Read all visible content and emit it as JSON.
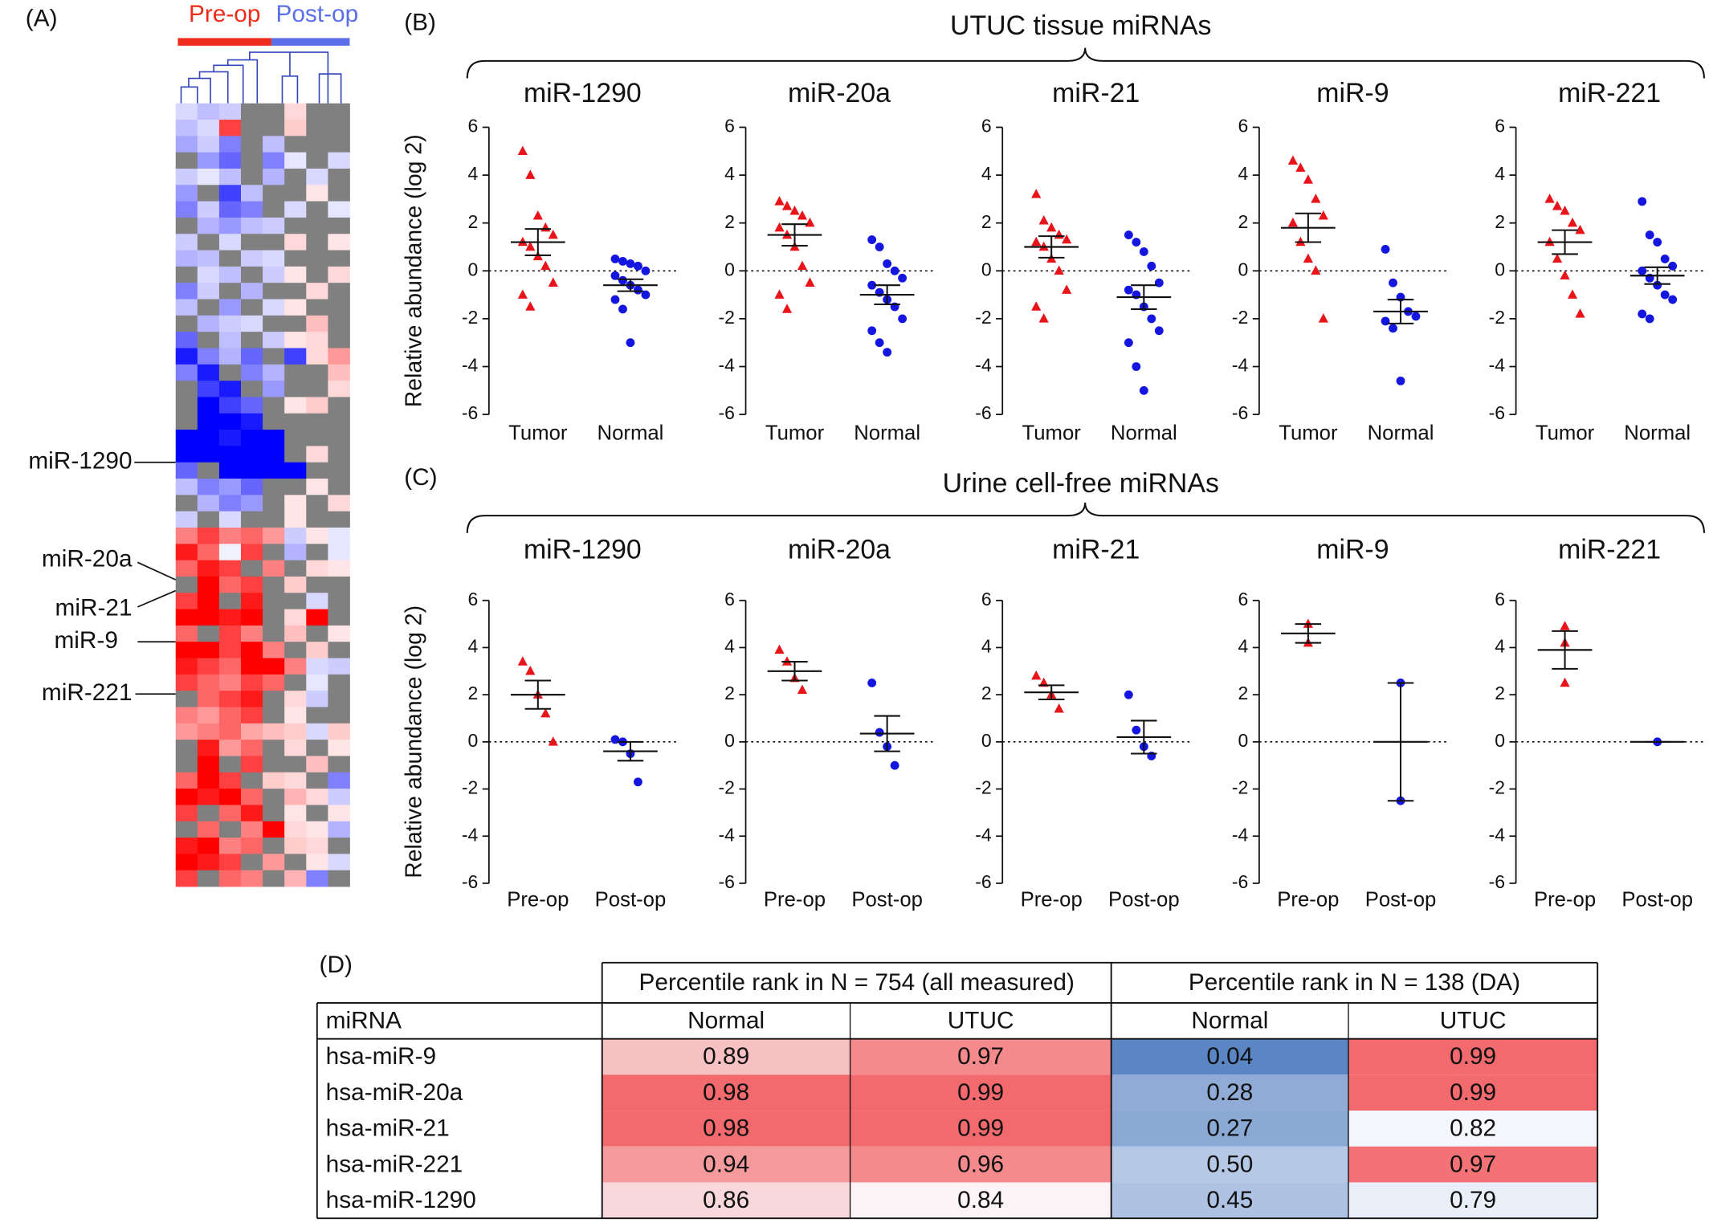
{
  "heatmap": {
    "label": "(A)",
    "groups": [
      {
        "name": "Pre-op",
        "color": "#ee2c1c"
      },
      {
        "name": "Post-op",
        "color": "#5a6fe8"
      }
    ],
    "row_labels": [
      "miR-1290",
      "miR-20a",
      "miR-21",
      "miR-9",
      "miR-221"
    ],
    "vlim": [
      -2,
      2
    ],
    "colors": {
      "low": "#0000ff",
      "mid": "#ffffff",
      "high": "#ff0000",
      "missing": "#808080"
    },
    "values": [
      [
        -0.3,
        -0.5,
        -0.4,
        null,
        null,
        0.3,
        null,
        null
      ],
      [
        -0.5,
        -0.3,
        1.5,
        null,
        null,
        0.4,
        null,
        null
      ],
      [
        -0.7,
        -0.4,
        -1,
        null,
        -0.5,
        null,
        null,
        null
      ],
      [
        null,
        -0.8,
        -1.2,
        null,
        -1,
        -0.2,
        null,
        -0.3
      ],
      [
        -0.4,
        -0.2,
        -0.5,
        null,
        -0.6,
        null,
        -0.3,
        null
      ],
      [
        -0.8,
        null,
        -1.5,
        -0.5,
        null,
        null,
        0.2,
        null
      ],
      [
        -1,
        -0.4,
        -1.2,
        -1,
        null,
        -0.3,
        null,
        -0.2
      ],
      [
        null,
        -0.6,
        -0.8,
        -0.5,
        -0.4,
        null,
        null,
        null
      ],
      [
        -0.4,
        null,
        -0.3,
        null,
        null,
        0.3,
        null,
        0.2
      ],
      [
        -0.6,
        -0.5,
        null,
        -0.4,
        -0.3,
        null,
        null,
        null
      ],
      [
        null,
        -0.3,
        -0.5,
        null,
        -0.4,
        0.2,
        null,
        0.3
      ],
      [
        -1,
        -0.4,
        null,
        -0.6,
        null,
        null,
        0.3,
        null
      ],
      [
        -0.5,
        null,
        -0.8,
        null,
        -0.3,
        0.2,
        null,
        null
      ],
      [
        null,
        -0.6,
        -0.4,
        -0.3,
        null,
        null,
        0.5,
        null
      ],
      [
        -1.2,
        null,
        -0.5,
        null,
        -0.4,
        0.2,
        0.3,
        null
      ],
      [
        -1.8,
        -1,
        -0.6,
        -1.2,
        null,
        -1.5,
        0.3,
        0.8
      ],
      [
        -1,
        -1.8,
        null,
        -1,
        -0.6,
        null,
        null,
        0.5
      ],
      [
        null,
        -1.5,
        -1.8,
        null,
        -0.8,
        null,
        null,
        0.3
      ],
      [
        null,
        -2,
        -1.5,
        -1.2,
        null,
        0.2,
        0.4,
        null
      ],
      [
        null,
        -2,
        -2,
        -1.8,
        null,
        null,
        null,
        null
      ],
      [
        -2,
        -2,
        -1.8,
        -2,
        -2,
        null,
        null,
        null
      ],
      [
        -2,
        -2,
        -2,
        -2,
        -2,
        null,
        0.3,
        null
      ],
      [
        -1.2,
        null,
        -2,
        -2,
        -2,
        -2,
        null,
        null
      ],
      [
        -0.5,
        -1,
        -0.8,
        -1.2,
        null,
        null,
        0.2,
        null
      ],
      [
        null,
        -0.6,
        -1,
        -0.8,
        null,
        0.2,
        null,
        0.3
      ],
      [
        -0.4,
        null,
        -0.3,
        null,
        null,
        0.2,
        null,
        null
      ],
      [
        1,
        1.5,
        1,
        1.2,
        0.8,
        -0.4,
        0.2,
        -0.2
      ],
      [
        1.8,
        1.2,
        -0.1,
        1.5,
        null,
        -0.6,
        null,
        -0.2
      ],
      [
        1.2,
        1.8,
        1.5,
        null,
        1,
        null,
        0.3,
        0.2
      ],
      [
        null,
        2,
        1.2,
        1.5,
        null,
        0.4,
        null,
        null
      ],
      [
        1.5,
        2,
        null,
        1.8,
        null,
        null,
        -0.3,
        null
      ],
      [
        2,
        2,
        1.8,
        2,
        null,
        0.3,
        2,
        null
      ],
      [
        1.2,
        null,
        1.5,
        1,
        null,
        0.5,
        null,
        0.2
      ],
      [
        2,
        2,
        1.5,
        2,
        1,
        null,
        0.4,
        null
      ],
      [
        1.8,
        1.5,
        1.2,
        2,
        2,
        1,
        -0.3,
        -0.4
      ],
      [
        1.5,
        1.2,
        1,
        1.5,
        1.2,
        null,
        -0.2,
        null
      ],
      [
        null,
        1.2,
        1.5,
        1.8,
        null,
        0.3,
        -0.4,
        null
      ],
      [
        1,
        0.8,
        1.2,
        1.5,
        null,
        0.2,
        null,
        null
      ],
      [
        0.8,
        1,
        1.2,
        0.7,
        0.5,
        0.4,
        -0.3,
        0.4
      ],
      [
        null,
        1.8,
        0.8,
        1.2,
        null,
        0.3,
        null,
        0.2
      ],
      [
        null,
        2,
        null,
        1.5,
        null,
        null,
        0.5,
        null
      ],
      [
        1.2,
        2,
        1.5,
        null,
        0.4,
        0.3,
        null,
        -1
      ],
      [
        2,
        1.8,
        2,
        1.2,
        null,
        0.6,
        0.3,
        -0.4
      ],
      [
        1.5,
        null,
        1.2,
        1.8,
        null,
        0.2,
        null,
        0.2
      ],
      [
        null,
        1.2,
        null,
        1,
        2,
        0.3,
        0.2,
        -0.6
      ],
      [
        1.8,
        2,
        1,
        1.2,
        null,
        0.4,
        0.3,
        null
      ],
      [
        2,
        1.8,
        1.5,
        null,
        0.8,
        null,
        0.2,
        -0.3
      ],
      [
        1.5,
        null,
        1.2,
        1,
        null,
        0.6,
        -1,
        null
      ]
    ]
  },
  "panels": [
    {
      "label": "(B)",
      "title": "UTUC tissue miRNAs",
      "ylabel": "Relative abundance (log 2)",
      "ylim": [
        -6,
        6
      ],
      "yticks": [
        -6,
        -4,
        -2,
        0,
        2,
        4,
        6
      ],
      "plots": [
        {
          "title": "miR-1290",
          "groups": [
            {
              "name": "Tumor",
              "color": "#e8141a",
              "marker": "triangle",
              "values": [
                5,
                4,
                2.3,
                1.8,
                1.5,
                1.2,
                1,
                0.6,
                0.2,
                -0.5,
                -1,
                -1.5
              ],
              "mean": 1.2,
              "sem": 0.55
            },
            {
              "name": "Normal",
              "color": "#1515e0",
              "marker": "circle",
              "values": [
                0.5,
                0.4,
                0.3,
                0.2,
                0,
                -0.2,
                -0.4,
                -0.6,
                -0.8,
                -1,
                -1.2,
                -1.6,
                -3
              ],
              "mean": -0.6,
              "sem": 0.25
            }
          ]
        },
        {
          "title": "miR-20a",
          "groups": [
            {
              "name": "Tumor",
              "color": "#e8141a",
              "marker": "triangle",
              "values": [
                2.9,
                2.7,
                2.5,
                2.3,
                2,
                1.8,
                1.5,
                1,
                0.2,
                -0.5,
                -1,
                -1.6
              ],
              "mean": 1.5,
              "sem": 0.45
            },
            {
              "name": "Normal",
              "color": "#1515e0",
              "marker": "circle",
              "values": [
                1.3,
                1,
                0.3,
                0,
                -0.3,
                -0.6,
                -0.9,
                -1.2,
                -1.5,
                -2,
                -2.5,
                -3,
                -3.4
              ],
              "mean": -1,
              "sem": 0.4
            }
          ]
        },
        {
          "title": "miR-21",
          "groups": [
            {
              "name": "Tumor",
              "color": "#e8141a",
              "marker": "triangle",
              "values": [
                3.2,
                2.1,
                1.8,
                1.5,
                1.3,
                1.2,
                1,
                0.5,
                0,
                -0.8,
                -1.5,
                -2
              ],
              "mean": 1,
              "sem": 0.45
            },
            {
              "name": "Normal",
              "color": "#1515e0",
              "marker": "circle",
              "values": [
                1.5,
                1.2,
                0.8,
                0.2,
                -0.5,
                -0.8,
                -1,
                -1.5,
                -2,
                -2.5,
                -3,
                -4,
                -5
              ],
              "mean": -1.1,
              "sem": 0.5
            }
          ]
        },
        {
          "title": "miR-9",
          "groups": [
            {
              "name": "Tumor",
              "color": "#e8141a",
              "marker": "triangle",
              "values": [
                4.6,
                4.3,
                3.8,
                3,
                2.3,
                2,
                1.2,
                0.5,
                0,
                -2
              ],
              "mean": 1.8,
              "sem": 0.6
            },
            {
              "name": "Normal",
              "color": "#1515e0",
              "marker": "circle",
              "values": [
                0.9,
                -0.5,
                -1.1,
                -1.7,
                -1.9,
                -2.1,
                -2.4,
                -4.6
              ],
              "mean": -1.7,
              "sem": 0.5
            }
          ]
        },
        {
          "title": "miR-221",
          "groups": [
            {
              "name": "Tumor",
              "color": "#e8141a",
              "marker": "triangle",
              "values": [
                3,
                2.7,
                2.5,
                2,
                1.7,
                1.2,
                0.5,
                -0.2,
                -1,
                -1.8
              ],
              "mean": 1.2,
              "sem": 0.5
            },
            {
              "name": "Normal",
              "color": "#1515e0",
              "marker": "circle",
              "values": [
                2.9,
                1.5,
                1.2,
                0.5,
                0.2,
                0,
                -0.3,
                -0.6,
                -1,
                -1.2,
                -1.8,
                -2
              ],
              "mean": -0.2,
              "sem": 0.35
            }
          ]
        }
      ]
    },
    {
      "label": "(C)",
      "title": "Urine cell-free miRNAs",
      "ylabel": "Relative abundance (log 2)",
      "ylim": [
        -6,
        6
      ],
      "yticks": [
        -6,
        -4,
        -2,
        0,
        2,
        4,
        6
      ],
      "plots": [
        {
          "title": "miR-1290",
          "groups": [
            {
              "name": "Pre-op",
              "color": "#e8141a",
              "marker": "triangle",
              "values": [
                3.4,
                3,
                2,
                1.2,
                0
              ],
              "mean": 2,
              "sem": 0.6
            },
            {
              "name": "Post-op",
              "color": "#1515e0",
              "marker": "circle",
              "values": [
                0.1,
                0,
                -0.5,
                -1.7
              ],
              "mean": -0.4,
              "sem": 0.4
            }
          ]
        },
        {
          "title": "miR-20a",
          "groups": [
            {
              "name": "Pre-op",
              "color": "#e8141a",
              "marker": "triangle",
              "values": [
                3.9,
                3.4,
                2.7,
                2.2
              ],
              "mean": 3,
              "sem": 0.4
            },
            {
              "name": "Post-op",
              "color": "#1515e0",
              "marker": "circle",
              "values": [
                2.5,
                0.4,
                -0.2,
                -1
              ],
              "mean": 0.35,
              "sem": 0.75
            }
          ]
        },
        {
          "title": "miR-21",
          "groups": [
            {
              "name": "Pre-op",
              "color": "#e8141a",
              "marker": "triangle",
              "values": [
                2.8,
                2.5,
                2,
                1.4
              ],
              "mean": 2.1,
              "sem": 0.3
            },
            {
              "name": "Post-op",
              "color": "#1515e0",
              "marker": "circle",
              "values": [
                2,
                0.5,
                -0.2,
                -0.6
              ],
              "mean": 0.2,
              "sem": 0.7
            }
          ]
        },
        {
          "title": "miR-9",
          "groups": [
            {
              "name": "Pre-op",
              "color": "#e8141a",
              "marker": "triangle",
              "values": [
                5,
                4.2
              ],
              "mean": 4.6,
              "sem": 0.4
            },
            {
              "name": "Post-op",
              "color": "#1515e0",
              "marker": "circle",
              "values": [
                2.5,
                -2.5
              ],
              "mean": 0,
              "sem": 2.5
            }
          ]
        },
        {
          "title": "miR-221",
          "groups": [
            {
              "name": "Pre-op",
              "color": "#e8141a",
              "marker": "triangle",
              "values": [
                4.9,
                4.2,
                2.5
              ],
              "mean": 3.9,
              "sem": 0.8
            },
            {
              "name": "Post-op",
              "color": "#1515e0",
              "marker": "circle",
              "values": [
                0
              ],
              "mean": 0,
              "sem": 0
            }
          ]
        }
      ]
    }
  ],
  "table": {
    "label": "(D)",
    "group_headers": [
      "Percentile rank in N = 754 (all measured)",
      "Percentile rank in N = 138 (DA)"
    ],
    "columns": [
      "miRNA",
      "Normal",
      "UTUC",
      "Normal",
      "UTUC"
    ],
    "rows": [
      [
        "hsa-miR-9",
        "0.89",
        "0.97",
        "0.04",
        "0.99"
      ],
      [
        "hsa-miR-20a",
        "0.98",
        "0.99",
        "0.28",
        "0.99"
      ],
      [
        "hsa-miR-21",
        "0.98",
        "0.99",
        "0.27",
        "0.82"
      ],
      [
        "hsa-miR-221",
        "0.94",
        "0.96",
        "0.50",
        "0.97"
      ],
      [
        "hsa-miR-1290",
        "0.86",
        "0.84",
        "0.45",
        "0.79"
      ]
    ],
    "colors": [
      [
        "#f7c1c4",
        "#f58a8d",
        "#5a86c4",
        "#f26a6e"
      ],
      [
        "#f26a6e",
        "#f26a6e",
        "#90acd6",
        "#f26a6e"
      ],
      [
        "#f26a6e",
        "#f26a6e",
        "#8aa9d5",
        "#f4f6fb"
      ],
      [
        "#f49a9d",
        "#f58a8d",
        "#b5c8e6",
        "#f37275"
      ],
      [
        "#f8d8da",
        "#fbf3f5",
        "#aec3e3",
        "#e9eff8"
      ]
    ]
  }
}
